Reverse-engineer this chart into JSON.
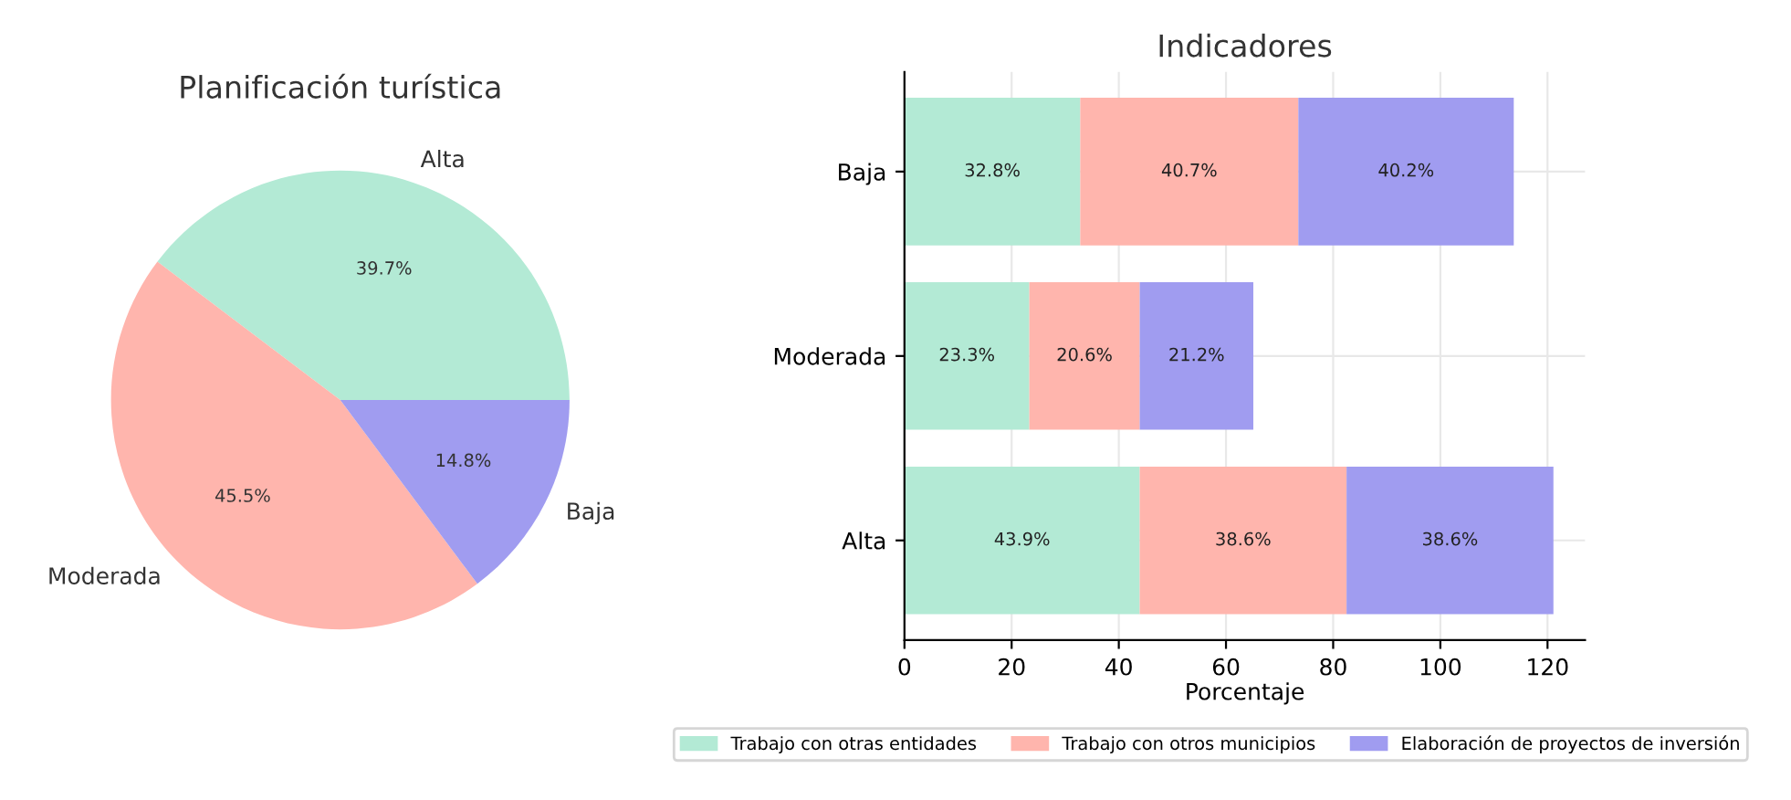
{
  "chart_data": [
    {
      "type": "pie",
      "title": "Planificación turística",
      "categories": [
        "Alta",
        "Moderada",
        "Baja"
      ],
      "values": [
        39.7,
        45.5,
        14.8
      ],
      "colors": [
        "#b3ead5",
        "#ffb5ad",
        "#a09cf0"
      ],
      "value_labels": [
        "39.7%",
        "45.5%",
        "14.8%"
      ]
    },
    {
      "type": "bar",
      "orientation": "horizontal",
      "stacked": true,
      "title": "Indicadores",
      "xlabel": "Porcentaje",
      "categories": [
        "Baja",
        "Moderada",
        "Alta"
      ],
      "series": [
        {
          "name": "Trabajo con otras entidades",
          "color": "#b3ead5",
          "values": [
            32.8,
            23.3,
            43.9
          ],
          "value_labels": [
            "32.8%",
            "23.3%",
            "43.9%"
          ]
        },
        {
          "name": "Trabajo con otros municipios",
          "color": "#ffb5ad",
          "values": [
            40.7,
            20.6,
            38.6
          ],
          "value_labels": [
            "40.7%",
            "20.6%",
            "38.6%"
          ]
        },
        {
          "name": "Elaboración de proyectos de inversión",
          "color": "#a09cf0",
          "values": [
            40.2,
            21.2,
            38.6
          ],
          "value_labels": [
            "40.2%",
            "21.2%",
            "38.6%"
          ]
        }
      ],
      "xlim": [
        0,
        127
      ],
      "xticks": [
        0,
        20,
        40,
        60,
        80,
        100,
        120
      ],
      "grid": true,
      "legend": "bottom"
    }
  ]
}
